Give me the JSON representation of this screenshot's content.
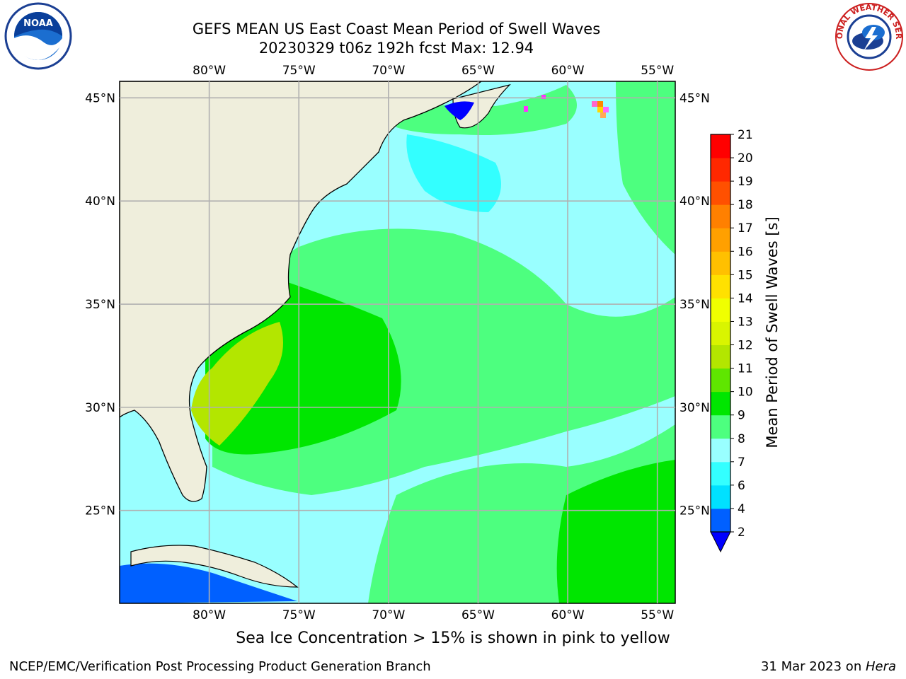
{
  "header": {
    "title_line1": "GEFS MEAN US East Coast Mean Period of Swell Waves",
    "title_line2": "20230329 t06z 192h fcst   Max: 12.94"
  },
  "logos": {
    "left": {
      "icon": "noaa-logo",
      "text": "NOAA"
    },
    "right": {
      "icon": "national-weather-service-logo",
      "text": "NATIONAL WEATHER SERVICE"
    }
  },
  "map": {
    "lon_labels": [
      "80°W",
      "75°W",
      "70°W",
      "65°W",
      "60°W",
      "55°W"
    ],
    "lat_labels": [
      "45°N",
      "40°N",
      "35°N",
      "30°N",
      "25°N"
    ],
    "lon_values": [
      -80,
      -75,
      -70,
      -65,
      -60,
      -55
    ],
    "lat_values": [
      45,
      40,
      35,
      30,
      25
    ],
    "lon_range": [
      -85,
      -54
    ],
    "lat_range": [
      20.5,
      45.8
    ],
    "grid": true,
    "colors": {
      "land": "#efeedc",
      "coast": "#000000",
      "grid": "#b0b0b0"
    }
  },
  "colorbar": {
    "label": "Mean Period of Swell Waves [s]",
    "ticks": [
      "2",
      "4",
      "6",
      "7",
      "8",
      "9",
      "10",
      "11",
      "12",
      "13",
      "14",
      "15",
      "16",
      "17",
      "18",
      "19",
      "20",
      "21"
    ],
    "colors": [
      "#0060ff",
      "#00e1ff",
      "#33ffff",
      "#99ffff",
      "#4dff7f",
      "#00e600",
      "#5fe600",
      "#b3e600",
      "#d9f500",
      "#f0ff00",
      "#ffe100",
      "#ffc000",
      "#ffa000",
      "#ff8000",
      "#ff5000",
      "#ff2800",
      "#ff0000"
    ],
    "under_color": "#0000ff"
  },
  "footer": {
    "note": "Sea Ice Concentration > 15% is shown in pink to yellow",
    "branch": "NCEP/EMC/Verification Post Processing Product Generation Branch",
    "date": "31 Mar 2023 on ",
    "machine": "Hera"
  }
}
